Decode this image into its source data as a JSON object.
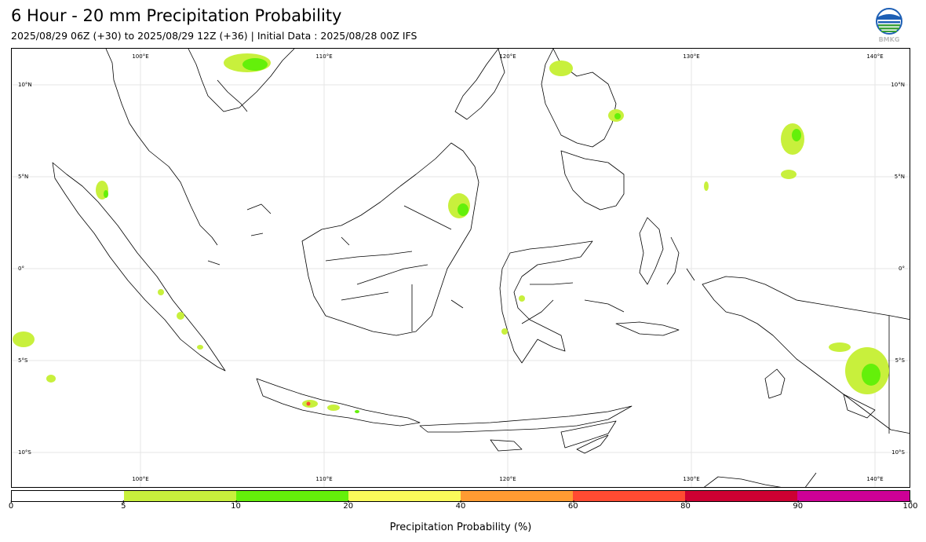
{
  "title": "6 Hour - 20 mm Precipitation Probability",
  "subtitle": "2025/08/29 06Z (+30) to 2025/08/29 12Z (+36) | Initial Data : 2025/08/28 00Z IFS",
  "logo": {
    "text": "BMKG",
    "icon": "bmkg-logo-icon"
  },
  "map": {
    "lon_range": [
      93,
      142
    ],
    "lat_range": [
      -12,
      12
    ],
    "top_lon_labels": [
      "100°E",
      "110°E",
      "120°E",
      "130°E",
      "140°E"
    ],
    "bottom_lon_labels": [
      "100°E",
      "110°E",
      "120°E",
      "130°E",
      "140°E"
    ],
    "left_lat_labels": [
      "10°N",
      "5°N",
      "0°",
      "5°S",
      "10°S"
    ],
    "right_lat_labels": [
      "10°N",
      "5°N",
      "0°",
      "5°S",
      "10°S"
    ],
    "gridlines": true
  },
  "colorbar": {
    "label": "Precipitation Probability (%)",
    "ticks": [
      "0",
      "5",
      "10",
      "20",
      "40",
      "60",
      "80",
      "90",
      "100"
    ],
    "colors": [
      "#ffffff",
      "#c8f03c",
      "#64f00a",
      "#fafa5a",
      "#ff9b32",
      "#ff4b32",
      "#cd0032",
      "#cd0096"
    ]
  }
}
